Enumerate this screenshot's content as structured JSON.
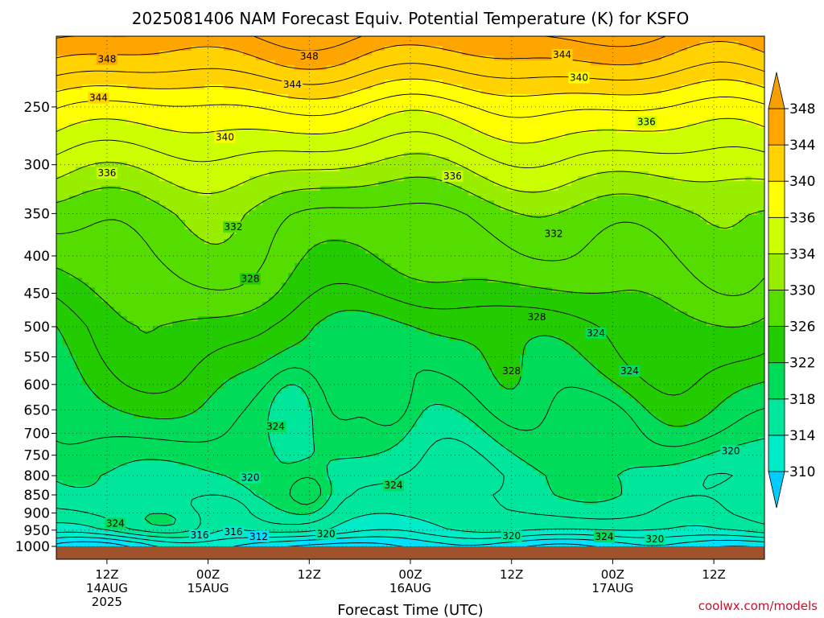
{
  "chart_data": {
    "type": "heatmap",
    "title": "2025081406 NAM Forecast Equiv. Potential Temperature (K) for KSFO",
    "xlabel": "Forecast Time (UTC)",
    "ylabel": "",
    "credit": "coolwx.com/models",
    "y_ticks": [
      "250",
      "300",
      "350",
      "400",
      "450",
      "500",
      "550",
      "600",
      "650",
      "700",
      "750",
      "800",
      "850",
      "900",
      "950",
      "1000"
    ],
    "y_values": [
      250,
      300,
      350,
      400,
      450,
      500,
      550,
      600,
      650,
      700,
      750,
      800,
      850,
      900,
      950,
      1000
    ],
    "y_scale": "log",
    "ylim": [
      200,
      1000
    ],
    "x_ticks": [
      {
        "time": "12Z",
        "date": "14AUG",
        "year": "2025"
      },
      {
        "time": "00Z",
        "date": "15AUG",
        "year": ""
      },
      {
        "time": "12Z",
        "date": "",
        "year": ""
      },
      {
        "time": "00Z",
        "date": "16AUG",
        "year": ""
      },
      {
        "time": "12Z",
        "date": "",
        "year": ""
      },
      {
        "time": "00Z",
        "date": "17AUG",
        "year": ""
      },
      {
        "time": "12Z",
        "date": "",
        "year": ""
      }
    ],
    "x_hours": [
      6,
      18,
      30,
      42,
      54,
      66,
      78
    ],
    "xlim": [
      0,
      84
    ],
    "colorbar": {
      "levels": [
        310,
        314,
        318,
        322,
        326,
        330,
        334,
        336,
        340,
        344,
        348
      ],
      "colors": [
        "#00e0ff",
        "#00ecc8",
        "#00e69a",
        "#00dc5a",
        "#22cc00",
        "#55dd00",
        "#99ee00",
        "#ccff00",
        "#ffff00",
        "#ffd200",
        "#ffa500"
      ],
      "under_color": "#00ccff",
      "over_color": "#f5a000"
    },
    "profile_levels": [
      250,
      300,
      350,
      400,
      450,
      500,
      550,
      600,
      650,
      700,
      750,
      800,
      850,
      900,
      950,
      1000
    ],
    "profile_values": [
      342,
      337,
      333,
      331,
      329,
      327,
      326,
      325,
      324,
      323,
      322,
      321,
      321,
      320,
      318,
      314
    ],
    "contour_labels": [
      {
        "hour": 6,
        "p": 215,
        "value": "348"
      },
      {
        "hour": 30,
        "p": 213,
        "value": "348"
      },
      {
        "hour": 60,
        "p": 212,
        "value": "344"
      },
      {
        "hour": 5,
        "p": 243,
        "value": "344"
      },
      {
        "hour": 28,
        "p": 233,
        "value": "344"
      },
      {
        "hour": 62,
        "p": 228,
        "value": "340"
      },
      {
        "hour": 20,
        "p": 275,
        "value": "340"
      },
      {
        "hour": 70,
        "p": 262,
        "value": "336"
      },
      {
        "hour": 6,
        "p": 308,
        "value": "336"
      },
      {
        "hour": 47,
        "p": 311,
        "value": "336"
      },
      {
        "hour": 21,
        "p": 365,
        "value": "332"
      },
      {
        "hour": 59,
        "p": 373,
        "value": "332"
      },
      {
        "hour": 23,
        "p": 430,
        "value": "328"
      },
      {
        "hour": 57,
        "p": 485,
        "value": "328"
      },
      {
        "hour": 54,
        "p": 575,
        "value": "328"
      },
      {
        "hour": 64,
        "p": 510,
        "value": "324"
      },
      {
        "hour": 68,
        "p": 575,
        "value": "324"
      },
      {
        "hour": 26,
        "p": 685,
        "value": "324"
      },
      {
        "hour": 40,
        "p": 825,
        "value": "324"
      },
      {
        "hour": 23,
        "p": 805,
        "value": "320"
      },
      {
        "hour": 80,
        "p": 740,
        "value": "320"
      },
      {
        "hour": 7,
        "p": 930,
        "value": "324"
      },
      {
        "hour": 17,
        "p": 965,
        "value": "316"
      },
      {
        "hour": 21,
        "p": 955,
        "value": "316"
      },
      {
        "hour": 24,
        "p": 970,
        "value": "312"
      },
      {
        "hour": 32,
        "p": 962,
        "value": "320"
      },
      {
        "hour": 54,
        "p": 968,
        "value": "320"
      },
      {
        "hour": 65,
        "p": 970,
        "value": "324"
      },
      {
        "hour": 71,
        "p": 978,
        "value": "320"
      }
    ]
  }
}
